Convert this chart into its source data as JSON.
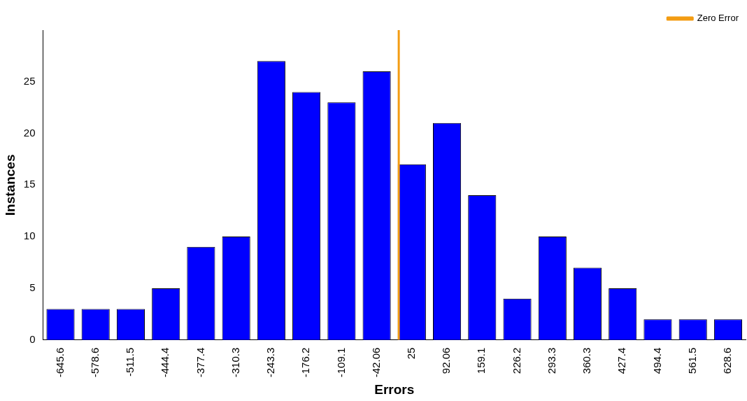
{
  "chart_data": {
    "type": "bar",
    "xlabel": "Errors",
    "ylabel": "Instances",
    "x": [
      -645.6,
      -578.6,
      -511.5,
      -444.4,
      -377.4,
      -310.3,
      -243.3,
      -176.2,
      -109.1,
      -42.06,
      25,
      92.06,
      159.1,
      226.2,
      293.3,
      360.3,
      427.4,
      494.4,
      561.5,
      628.6
    ],
    "series": [
      {
        "color": "#0000ff",
        "values": [
          3,
          3,
          3,
          5,
          9,
          10,
          27,
          24,
          23,
          26,
          17,
          21,
          14,
          4,
          10,
          7,
          5,
          2,
          2,
          2
        ]
      },
      {
        "type": "line",
        "name": "Zero Error",
        "color": "#f39c12",
        "x": [
          0,
          0
        ],
        "values": [
          0,
          30
        ]
      }
    ],
    "xlim": [
      -679,
      662
    ],
    "xticks": [
      -645.6,
      -578.6,
      -511.5,
      -444.4,
      -377.4,
      -310.3,
      -243.3,
      -176.2,
      -109.1,
      -42.06,
      25,
      92.06,
      159.1,
      226.2,
      293.3,
      360.3,
      427.4,
      494.4,
      561.5,
      628.6
    ],
    "ylim": [
      0,
      30
    ],
    "yticks": [
      0,
      5,
      10,
      15,
      20,
      25
    ],
    "legend": "top right",
    "grid": false
  }
}
